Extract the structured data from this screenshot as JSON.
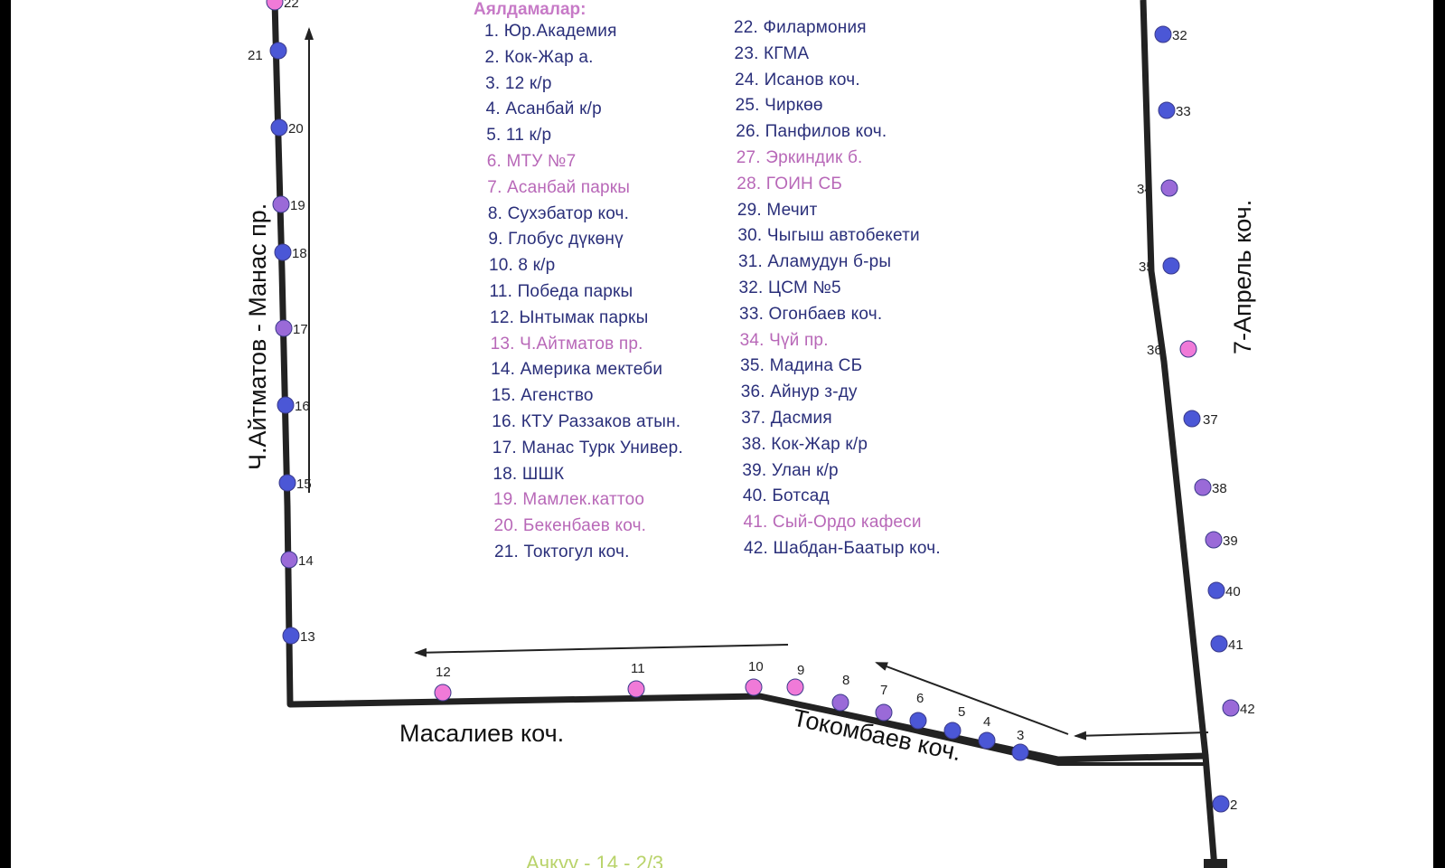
{
  "legend_title": "Аялдамалар:",
  "colors": {
    "route_line": "#222222",
    "stop_blue": "#4b57d6",
    "stop_pink": "#f07ad8",
    "stop_mixed": "#9a6ad8",
    "text_dark": "#2a2f7a",
    "text_pink": "#b868b8",
    "caption_green": "#b9d36a"
  },
  "legend": [
    {
      "label": "1. Юр.Академия",
      "color": "dark"
    },
    {
      "label": "2. Кок-Жар а.",
      "color": "dark"
    },
    {
      "label": "3. 12 к/р",
      "color": "dark"
    },
    {
      "label": "4. Асанбай к/р",
      "color": "dark"
    },
    {
      "label": "5. 11 к/р",
      "color": "dark"
    },
    {
      "label": "6. МТУ №7",
      "color": "pink"
    },
    {
      "label": "7. Асанбай паркы",
      "color": "pink"
    },
    {
      "label": "8. Сухэбатор коч.",
      "color": "dark"
    },
    {
      "label": "9. Глобус дүкөнү",
      "color": "dark"
    },
    {
      "label": "10. 8 к/р",
      "color": "dark"
    },
    {
      "label": "11. Победа паркы",
      "color": "dark"
    },
    {
      "label": "12. Ынтымак паркы",
      "color": "dark"
    },
    {
      "label": "13. Ч.Айтматов пр.",
      "color": "pink"
    },
    {
      "label": "14. Америка мектеби",
      "color": "dark"
    },
    {
      "label": "15. Агенство",
      "color": "dark"
    },
    {
      "label": "16. КТУ Раззаков атын.",
      "color": "dark"
    },
    {
      "label": "17. Манас Турк Универ.",
      "color": "dark"
    },
    {
      "label": "18. ШШК",
      "color": "dark"
    },
    {
      "label": "19. Мамлек.каттоо",
      "color": "pink"
    },
    {
      "label": "20. Бекенбаев коч.",
      "color": "pink"
    },
    {
      "label": "21. Токтогул коч.",
      "color": "dark"
    },
    {
      "label": "22. Филармония",
      "color": "dark"
    },
    {
      "label": "23. КГМА",
      "color": "dark"
    },
    {
      "label": "24. Исанов коч.",
      "color": "dark"
    },
    {
      "label": "25. Чиркөө",
      "color": "dark"
    },
    {
      "label": "26. Панфилов коч.",
      "color": "dark"
    },
    {
      "label": "27. Эркиндик б.",
      "color": "pink"
    },
    {
      "label": "28. ГОИН СБ",
      "color": "pink"
    },
    {
      "label": "29. Мечит",
      "color": "dark"
    },
    {
      "label": "30. Чыгыш автобекети",
      "color": "dark"
    },
    {
      "label": "31. Аламудун б-ры",
      "color": "dark"
    },
    {
      "label": "32. ЦСМ №5",
      "color": "dark"
    },
    {
      "label": "33. Огонбаев коч.",
      "color": "dark"
    },
    {
      "label": "34.  Чүй пр.",
      "color": "pink"
    },
    {
      "label": "35. Мадина СБ",
      "color": "dark"
    },
    {
      "label": "36. Айнур з-ду",
      "color": "dark"
    },
    {
      "label": "37. Дасмия",
      "color": "dark"
    },
    {
      "label": "38. Кок-Жар к/р",
      "color": "dark"
    },
    {
      "label": "39. Улан к/р",
      "color": "dark"
    },
    {
      "label": "40. Ботсад",
      "color": "dark"
    },
    {
      "label": "41. Сый-Ордо кафеси",
      "color": "pink"
    },
    {
      "label": "42. Шабдан-Баатыр коч.",
      "color": "dark"
    }
  ],
  "streets": {
    "west": "Ч.Айтматов - Манас пр.",
    "east": "7-Апрель коч.",
    "south_left": "Масалиев коч.",
    "south_right": "Токомбаев коч."
  },
  "stops": [
    {
      "n": "2",
      "kind": "blue"
    },
    {
      "n": "3",
      "kind": "blue"
    },
    {
      "n": "4",
      "kind": "blue"
    },
    {
      "n": "5",
      "kind": "blue"
    },
    {
      "n": "6",
      "kind": "blue"
    },
    {
      "n": "7",
      "kind": "mixed"
    },
    {
      "n": "8",
      "kind": "mixed"
    },
    {
      "n": "9",
      "kind": "pink"
    },
    {
      "n": "10",
      "kind": "pink"
    },
    {
      "n": "11",
      "kind": "pink"
    },
    {
      "n": "12",
      "kind": "pink"
    },
    {
      "n": "13",
      "kind": "blue"
    },
    {
      "n": "14",
      "kind": "mixed"
    },
    {
      "n": "15",
      "kind": "blue"
    },
    {
      "n": "16",
      "kind": "blue"
    },
    {
      "n": "17",
      "kind": "mixed"
    },
    {
      "n": "18",
      "kind": "blue"
    },
    {
      "n": "19",
      "kind": "mixed"
    },
    {
      "n": "20",
      "kind": "blue"
    },
    {
      "n": "21",
      "kind": "blue"
    },
    {
      "n": "22",
      "kind": "pink"
    },
    {
      "n": "32",
      "kind": "blue"
    },
    {
      "n": "33",
      "kind": "blue"
    },
    {
      "n": "34",
      "kind": "mixed"
    },
    {
      "n": "35",
      "kind": "blue"
    },
    {
      "n": "36",
      "kind": "pink"
    },
    {
      "n": "37",
      "kind": "blue"
    },
    {
      "n": "38",
      "kind": "mixed"
    },
    {
      "n": "39",
      "kind": "mixed"
    },
    {
      "n": "40",
      "kind": "blue"
    },
    {
      "n": "41",
      "kind": "blue"
    },
    {
      "n": "42",
      "kind": "mixed"
    }
  ],
  "caption": "Ачкуу - 14 - 2/3"
}
